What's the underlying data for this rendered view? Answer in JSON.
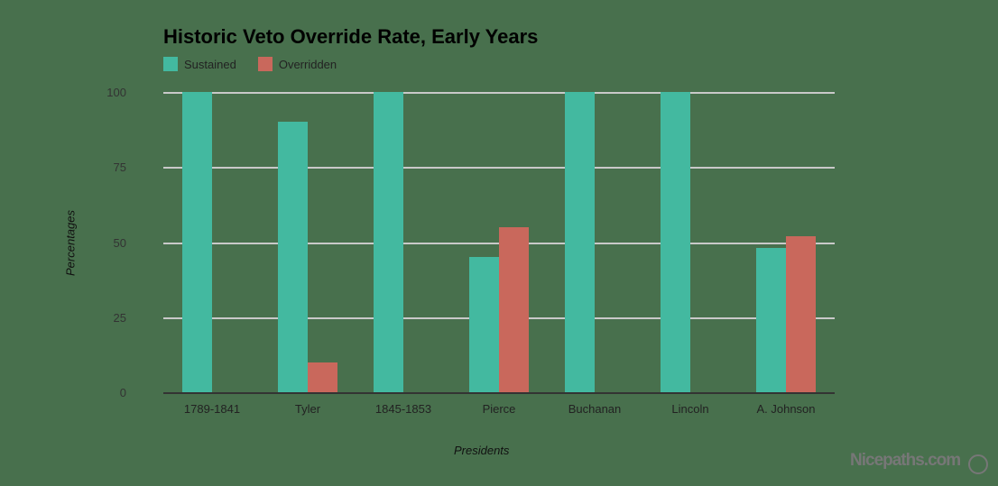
{
  "chart_data": {
    "type": "bar",
    "title": "Historic Veto Override Rate, Early Years",
    "xlabel": "Presidents",
    "ylabel": "Percentages",
    "ylim": [
      0,
      100
    ],
    "yticks": [
      0,
      25,
      50,
      75,
      100
    ],
    "grid": true,
    "legend_position": "top-left",
    "categories": [
      "1789-1841",
      "Tyler",
      "1845-1853",
      "Pierce",
      "Buchanan",
      "Lincoln",
      "A. Johnson"
    ],
    "series": [
      {
        "name": "Sustained",
        "color": "#43b9a0",
        "values": [
          100,
          90,
          100,
          45,
          100,
          100,
          48
        ]
      },
      {
        "name": "Overridden",
        "color": "#c9685c",
        "values": [
          0,
          10,
          0,
          55,
          0,
          0,
          52
        ]
      }
    ]
  },
  "watermark": "Nicepaths.com"
}
